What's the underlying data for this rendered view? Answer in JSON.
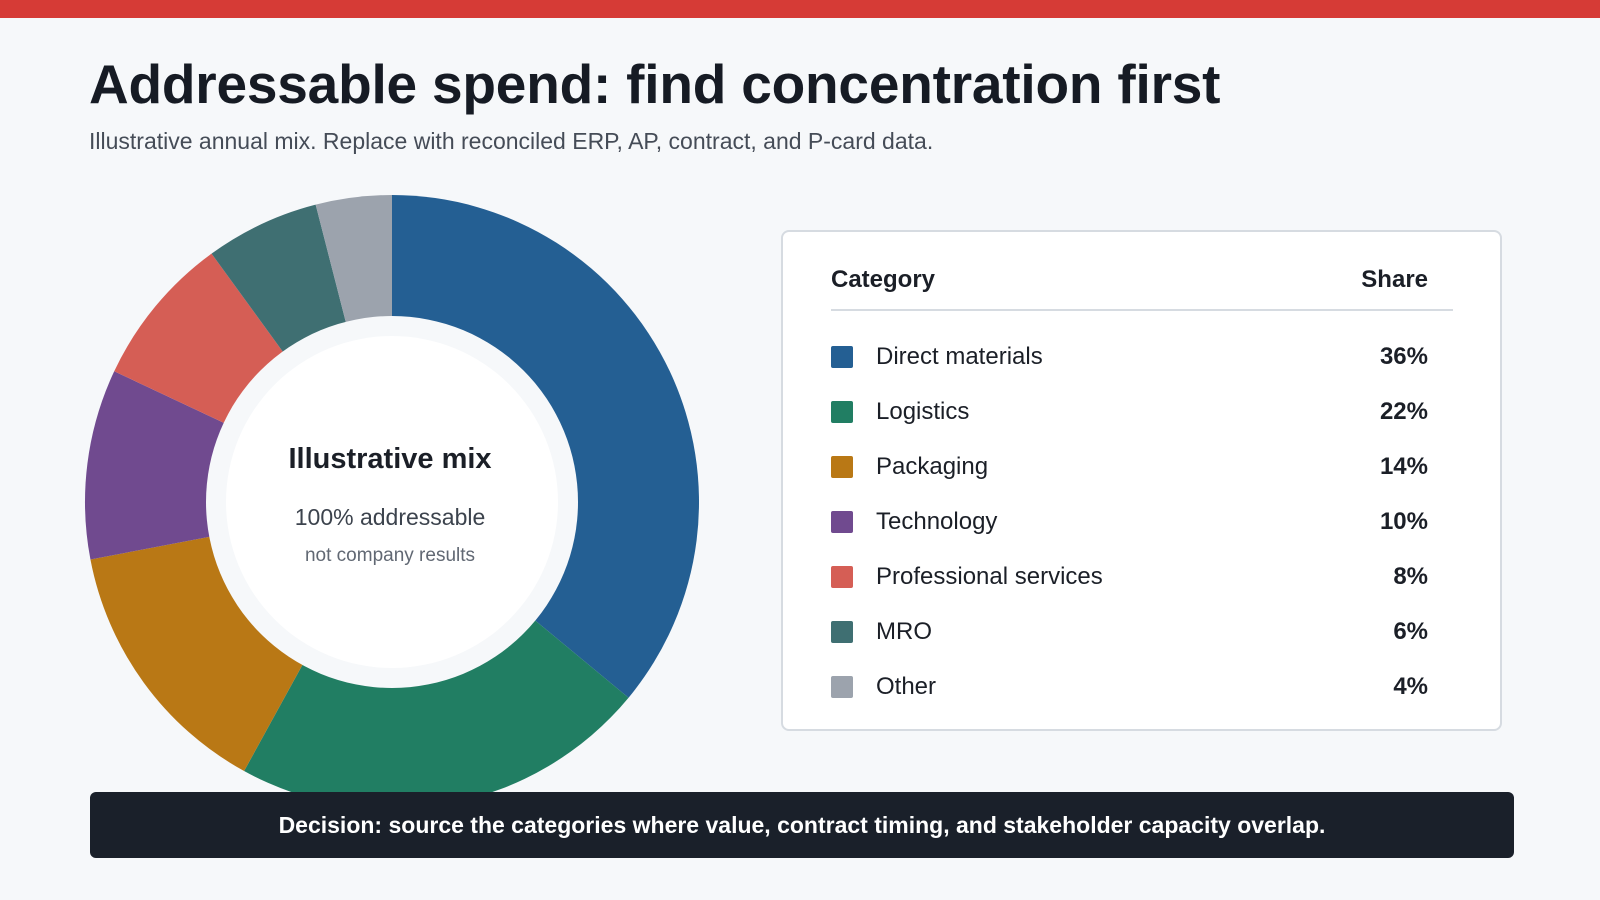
{
  "header": {
    "title": "Addressable spend: find concentration first",
    "subtitle": "Illustrative annual mix. Replace with reconciled ERP, AP, contract, and P-card data."
  },
  "donut_center": {
    "title": "Illustrative mix",
    "subtitle": "100% addressable",
    "note": "not company results"
  },
  "legend": {
    "category_header": "Category",
    "share_header": "Share"
  },
  "chart_data": {
    "type": "pie",
    "variant": "donut",
    "title": "",
    "unit": "%",
    "categories": [
      "Direct materials",
      "Logistics",
      "Packaging",
      "Technology",
      "Professional services",
      "MRO",
      "Other"
    ],
    "values": [
      36,
      22,
      14,
      10,
      8,
      6,
      4
    ],
    "labels": [
      "36%",
      "22%",
      "14%",
      "10%",
      "8%",
      "6%",
      "4%"
    ],
    "colors": [
      "#245f93",
      "#217e63",
      "#b97815",
      "#704a8f",
      "#d55e55",
      "#3f6f72",
      "#9ca3ad"
    ],
    "start_angle": "top, clockwise",
    "legend_position": "right"
  },
  "footer": {
    "decision": "Decision: source the categories where value, contract timing, and stakeholder capacity overlap."
  },
  "colors": {
    "accent_bar": "#d63b36",
    "decision_bg": "#1a202a",
    "background": "#f6f8fa"
  }
}
